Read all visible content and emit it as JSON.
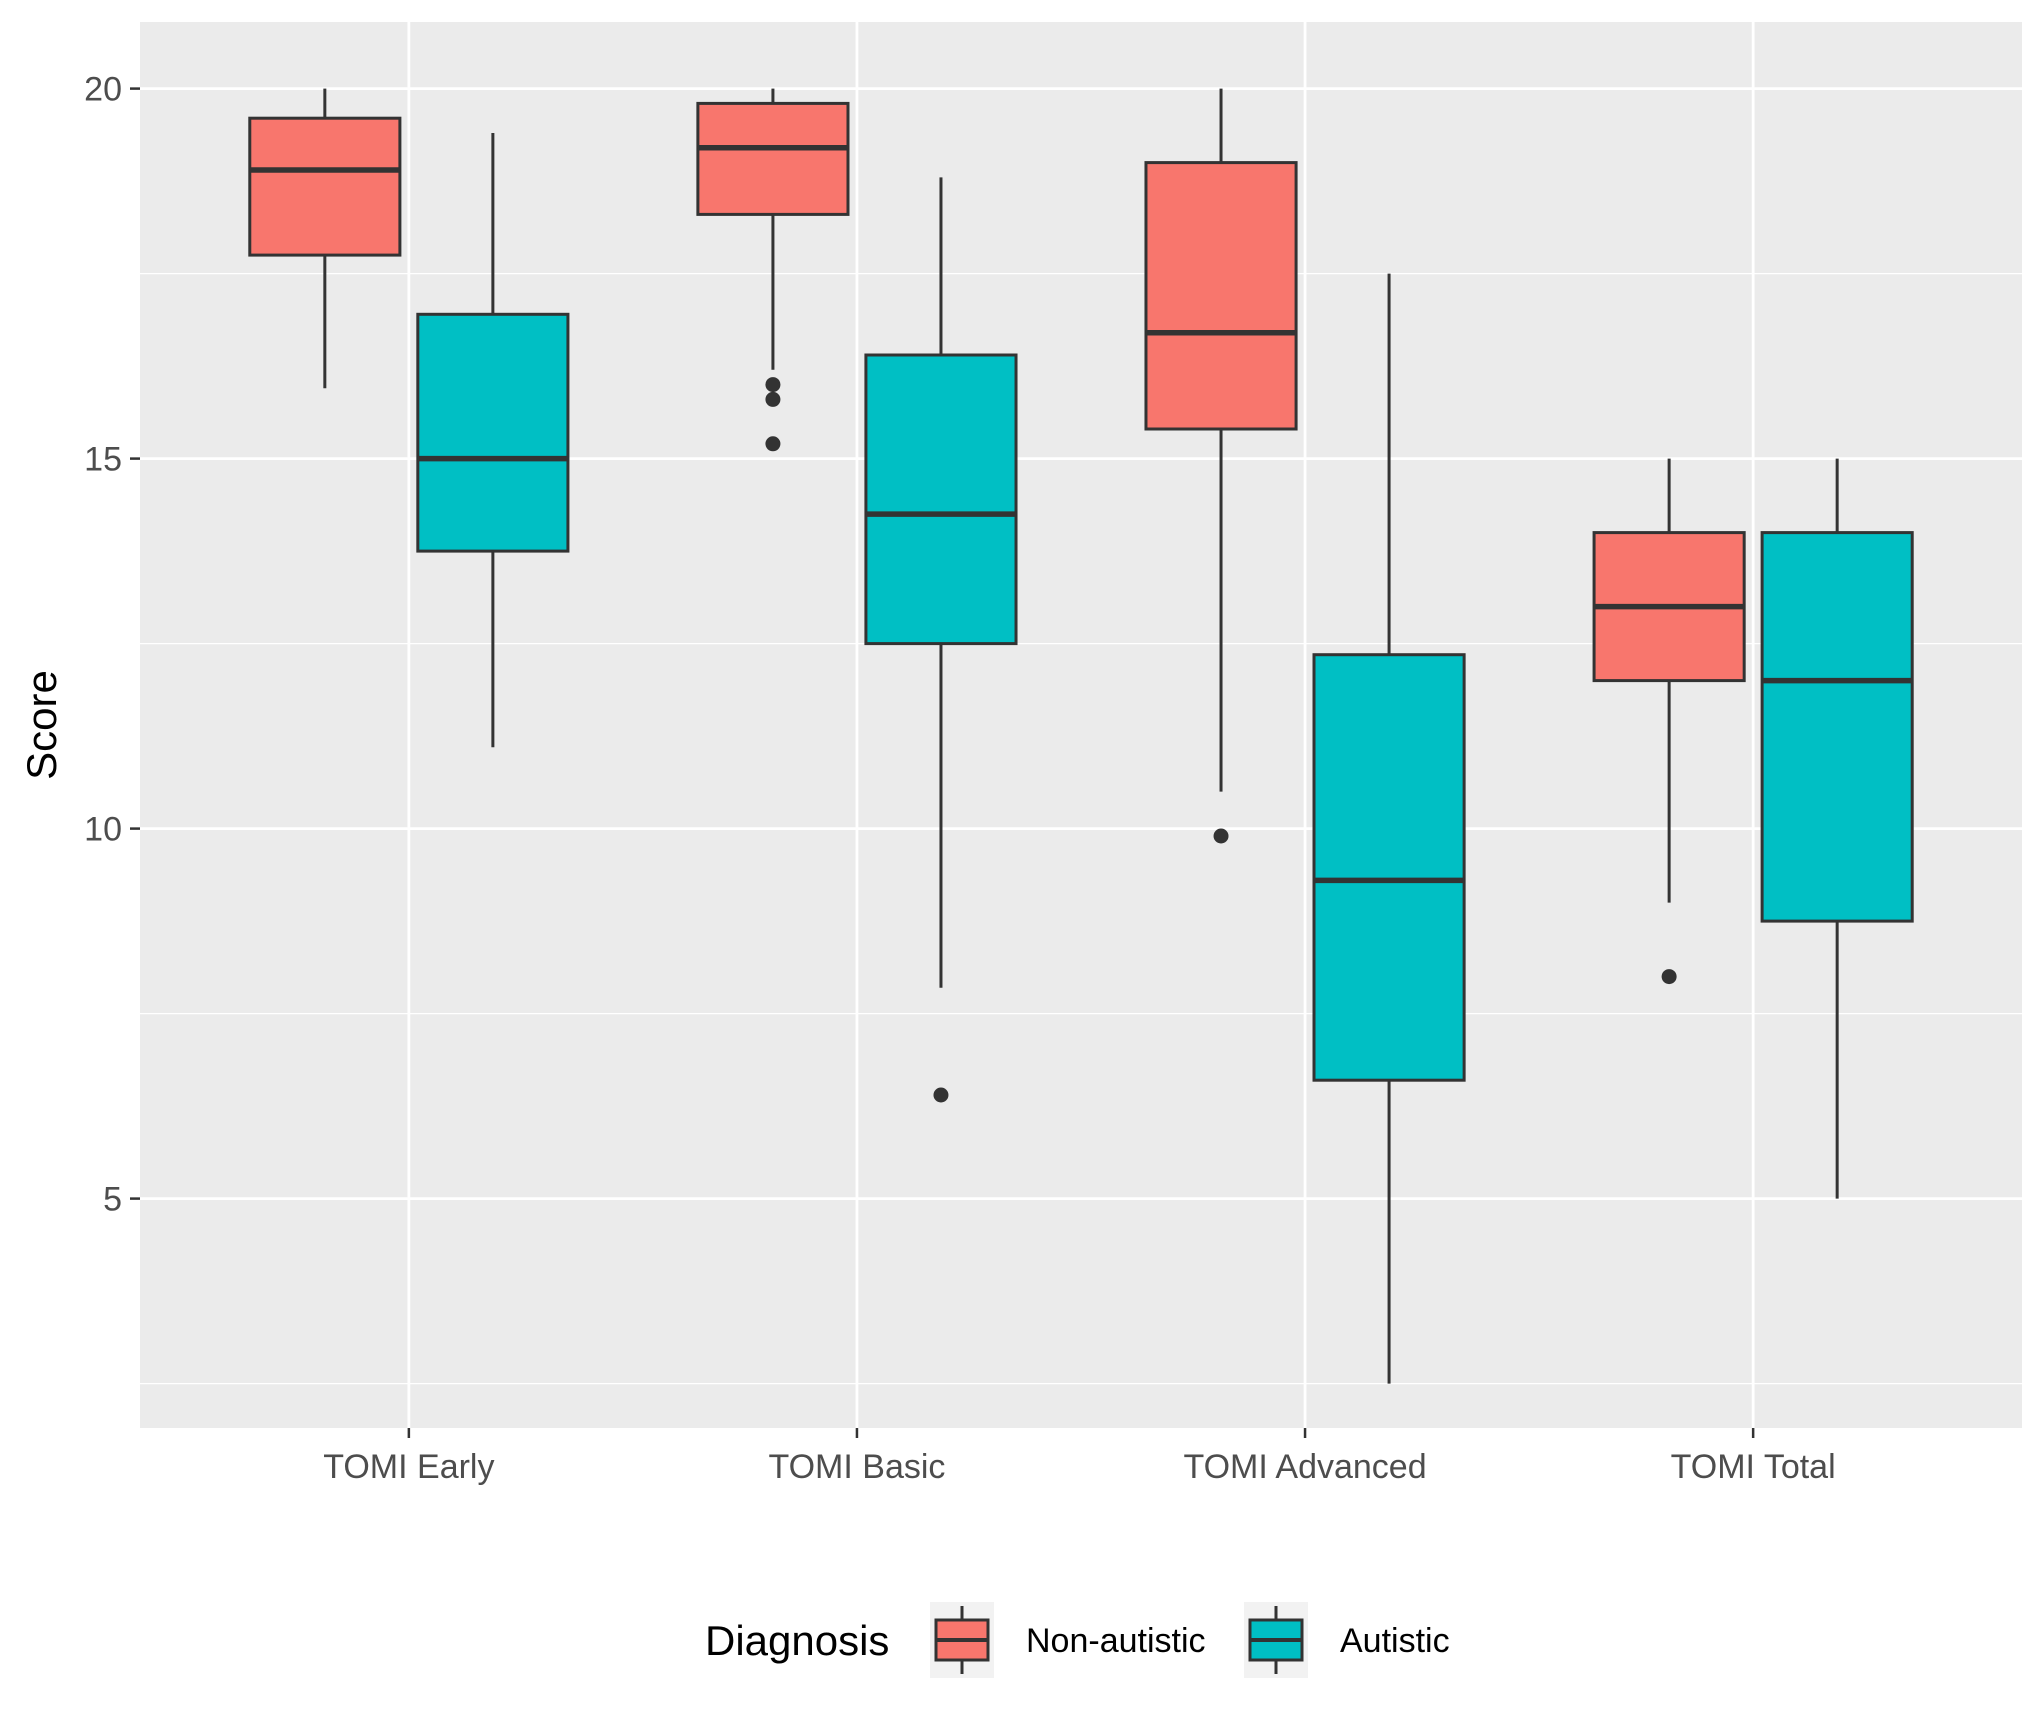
{
  "chart_data": {
    "type": "boxplot",
    "title": "",
    "xlabel": "",
    "ylabel": "Score",
    "ylim": [
      1.9,
      20.9
    ],
    "yticks": [
      5,
      10,
      15,
      20
    ],
    "grid": true,
    "legend": {
      "title": "Diagnosis",
      "position": "bottom",
      "entries": [
        "Non-autistic",
        "Autistic"
      ]
    },
    "categories": [
      "TOMI Early",
      "TOMI Basic",
      "TOMI Advanced",
      "TOMI Total"
    ],
    "series": [
      {
        "name": "Non-autistic",
        "color": "#F8766D",
        "boxes": [
          {
            "lower_whisker": 15.95,
            "q1": 17.75,
            "median": 18.9,
            "q3": 19.6,
            "upper_whisker": 20.0,
            "outliers": []
          },
          {
            "lower_whisker": 16.2,
            "q1": 18.3,
            "median": 19.2,
            "q3": 19.8,
            "upper_whisker": 20.0,
            "outliers": [
              16.0,
              15.8,
              15.2
            ]
          },
          {
            "lower_whisker": 10.5,
            "q1": 15.4,
            "median": 16.7,
            "q3": 19.0,
            "upper_whisker": 20.0,
            "outliers": [
              9.9
            ]
          },
          {
            "lower_whisker": 9.0,
            "q1": 12.0,
            "median": 13.0,
            "q3": 14.0,
            "upper_whisker": 15.0,
            "outliers": [
              8.0
            ]
          }
        ]
      },
      {
        "name": "Autistic",
        "color": "#00BFC4",
        "boxes": [
          {
            "lower_whisker": 11.1,
            "q1": 13.75,
            "median": 15.0,
            "q3": 16.95,
            "upper_whisker": 19.4,
            "outliers": []
          },
          {
            "lower_whisker": 7.85,
            "q1": 12.5,
            "median": 14.25,
            "q3": 16.4,
            "upper_whisker": 18.8,
            "outliers": [
              6.4
            ]
          },
          {
            "lower_whisker": 2.5,
            "q1": 6.6,
            "median": 9.3,
            "q3": 12.35,
            "upper_whisker": 17.5,
            "outliers": []
          },
          {
            "lower_whisker": 5.0,
            "q1": 8.75,
            "median": 12.0,
            "q3": 14.0,
            "upper_whisker": 15.0,
            "outliers": []
          }
        ]
      }
    ]
  }
}
